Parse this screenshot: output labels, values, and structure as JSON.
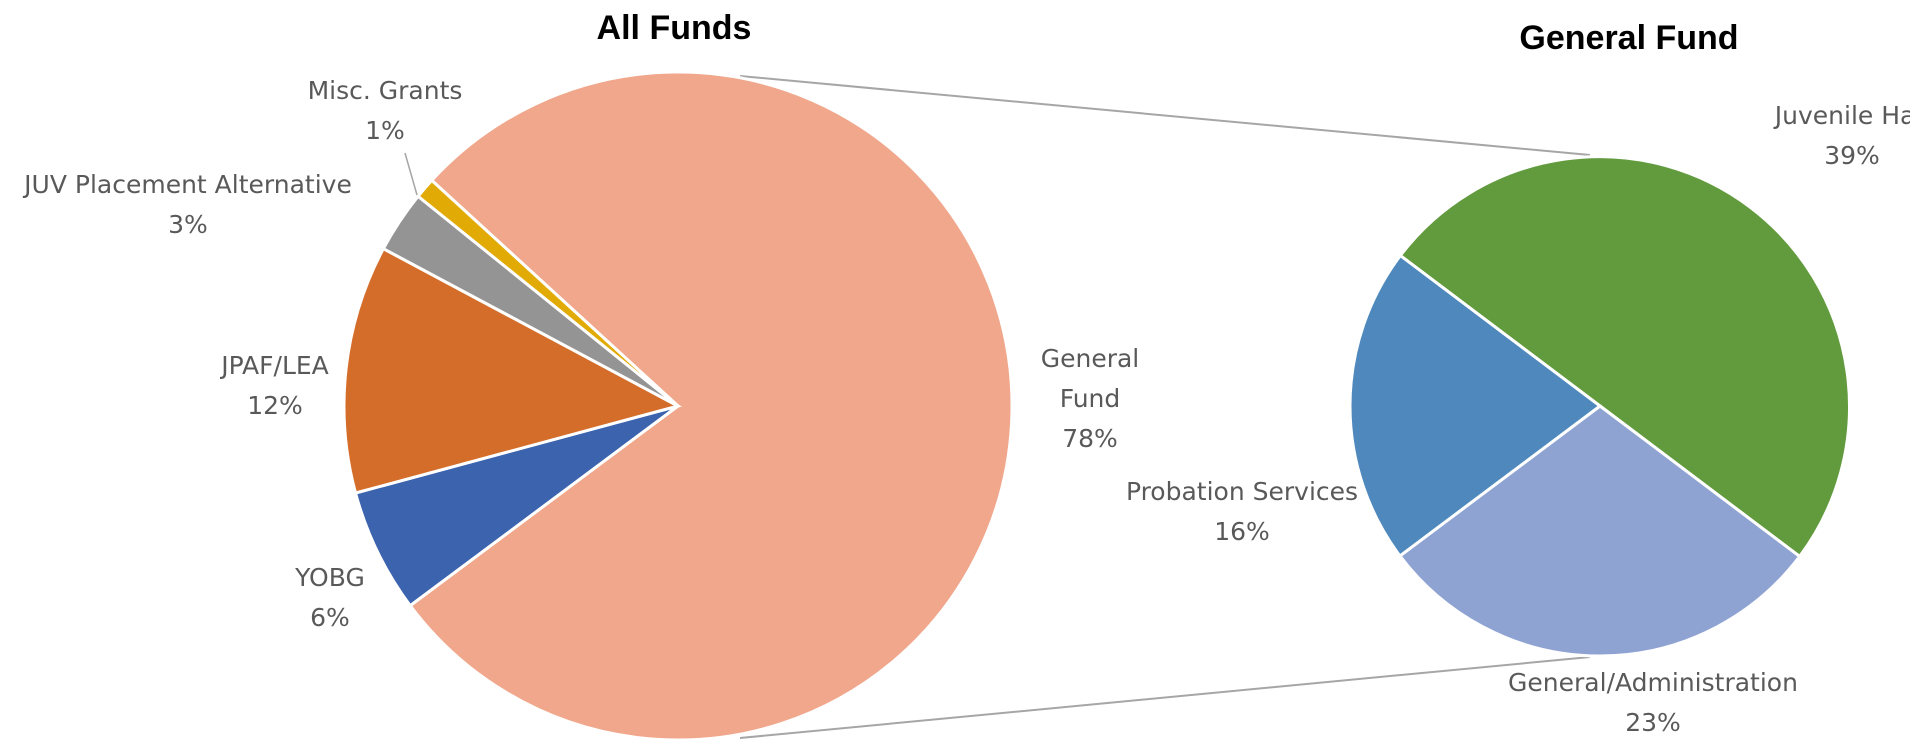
{
  "chart_data": [
    {
      "type": "pie",
      "title": "All Funds",
      "slices": [
        {
          "name": "General Fund",
          "label_lines": [
            "General",
            "Fund"
          ],
          "percent": 78,
          "percent_text": "78%",
          "color": "#f0a78b"
        },
        {
          "name": "YOBG",
          "label_lines": [
            "YOBG"
          ],
          "percent": 6,
          "percent_text": "6%",
          "color": "#3c63ad"
        },
        {
          "name": "JPAF/LEA",
          "label_lines": [
            "JPAF/LEA"
          ],
          "percent": 12,
          "percent_text": "12%",
          "color": "#d46d2a"
        },
        {
          "name": "JUV Placement Alternative",
          "label_lines": [
            "JUV Placement Alternative"
          ],
          "percent": 3,
          "percent_text": "3%",
          "color": "#949494"
        },
        {
          "name": "Misc. Grants",
          "label_lines": [
            "Misc. Grants"
          ],
          "percent": 1,
          "percent_text": "1%",
          "color": "#e1aa04"
        }
      ]
    },
    {
      "type": "pie",
      "title": "General Fund",
      "slices": [
        {
          "name": "Juvenile Hall",
          "label_lines": [
            "Juvenile Hall"
          ],
          "percent": 39,
          "percent_text": "39%",
          "color": "#629b3e"
        },
        {
          "name": "General/Administration",
          "label_lines": [
            "General/Administration"
          ],
          "percent": 23,
          "percent_text": "23%",
          "color": "#8fa3d3"
        },
        {
          "name": "Probation Services",
          "label_lines": [
            "Probation Services"
          ],
          "percent": 16,
          "percent_text": "16%",
          "color": "#4e88bc"
        }
      ]
    }
  ]
}
